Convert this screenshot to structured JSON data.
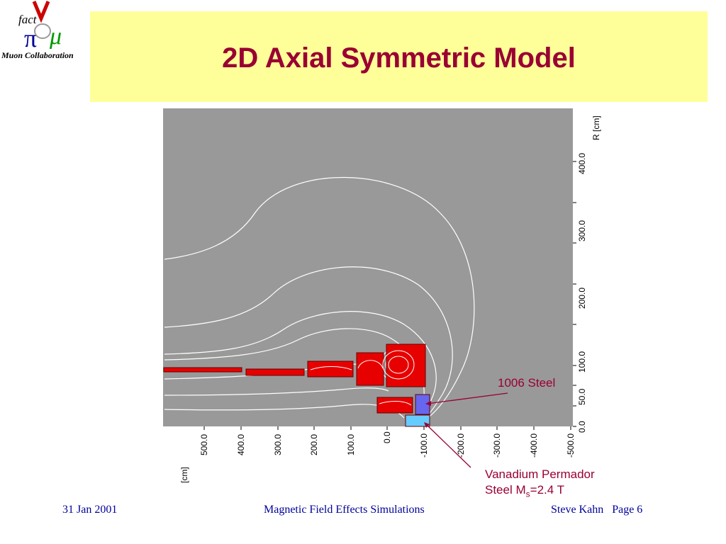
{
  "logo": {
    "brand_text": "fact",
    "caption": "Muon Collaboration"
  },
  "slide_title": "2D Axial Symmetric Model",
  "plot": {
    "r_axis_title": "R [cm]",
    "z_axis_title": "[cm]",
    "r_ticks": [
      "0.0",
      "50.0",
      "100.0",
      "200.0",
      "300.0",
      "400.0"
    ],
    "z_ticks": [
      "500.0",
      "400.0",
      "300.0",
      "200.0",
      "100.0",
      "0.0",
      "-100.0",
      "-200.0",
      "-300.0",
      "-400.0",
      "-500.0"
    ],
    "colors": {
      "background": "#999999",
      "coil": "#e60000",
      "permendur": "#6666ee",
      "steel": "#66ccff",
      "field_line": "#ffffff"
    }
  },
  "callouts": {
    "steel": "1006 Steel",
    "vanadium_line1": "Vanadium Permador",
    "vanadium_line2_prefix": "Steel  M",
    "vanadium_sub": "s",
    "vanadium_line2_suffix": "=2.4 T"
  },
  "footer": {
    "date": "31 Jan 2001",
    "center": "Magnetic Field Effects Simulations",
    "author": "Steve Kahn",
    "page": "Page 6"
  }
}
